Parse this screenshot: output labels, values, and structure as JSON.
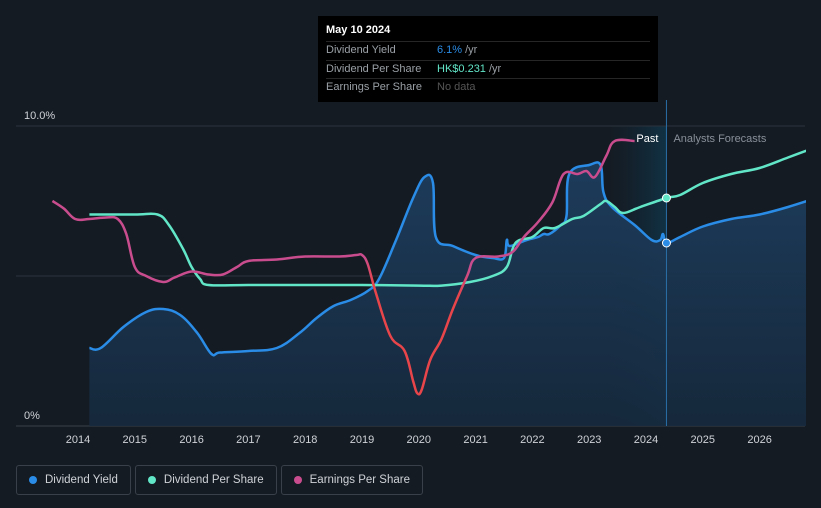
{
  "tooltip": {
    "date": "May 10 2024",
    "rows": [
      {
        "label": "Dividend Yield",
        "value": "6.1%",
        "unit": "/yr",
        "color": "#2a8ce6"
      },
      {
        "label": "Dividend Per Share",
        "value": "HK$0.231",
        "unit": "/yr",
        "color": "#62e6c8"
      },
      {
        "label": "Earnings Per Share",
        "value": "No data",
        "unit": "",
        "color": "#555555"
      }
    ]
  },
  "legend": [
    {
      "label": "Dividend Yield",
      "color": "#2a8ce6"
    },
    {
      "label": "Dividend Per Share",
      "color": "#62e6c8"
    },
    {
      "label": "Earnings Per Share",
      "color": "#c94d8e"
    }
  ],
  "chart_data": {
    "type": "line",
    "title": "",
    "xlabel": "",
    "ylabel": "",
    "ylim": [
      0,
      10
    ],
    "xlim": [
      2013.4,
      2027
    ],
    "y_tick_labels": [
      {
        "value": 10,
        "label": "10.0%"
      },
      {
        "value": 0,
        "label": "0%"
      }
    ],
    "x_ticks": [
      2014,
      2015,
      2016,
      2017,
      2018,
      2019,
      2020,
      2021,
      2022,
      2023,
      2024,
      2025,
      2026
    ],
    "past_label": "Past",
    "forecast_label": "Analysts Forecasts",
    "forecast_start": 2023.35,
    "today": 2024.36,
    "series": [
      {
        "name": "Dividend Yield",
        "color": "#2a8ce6",
        "area": true,
        "points": [
          [
            2014.2,
            2.6
          ],
          [
            2014.4,
            2.6
          ],
          [
            2014.8,
            3.3
          ],
          [
            2015.2,
            3.8
          ],
          [
            2015.5,
            3.9
          ],
          [
            2015.8,
            3.7
          ],
          [
            2016.1,
            3.1
          ],
          [
            2016.35,
            2.4
          ],
          [
            2016.5,
            2.45
          ],
          [
            2017,
            2.5
          ],
          [
            2017.5,
            2.6
          ],
          [
            2017.9,
            3.1
          ],
          [
            2018.2,
            3.6
          ],
          [
            2018.5,
            4.0
          ],
          [
            2018.8,
            4.2
          ],
          [
            2019.1,
            4.5
          ],
          [
            2019.3,
            4.9
          ],
          [
            2019.6,
            6.2
          ],
          [
            2019.9,
            7.6
          ],
          [
            2020.1,
            8.3
          ],
          [
            2020.25,
            8.1
          ],
          [
            2020.3,
            6.3
          ],
          [
            2020.6,
            6.0
          ],
          [
            2021.0,
            5.7
          ],
          [
            2021.3,
            5.6
          ],
          [
            2021.5,
            5.6
          ],
          [
            2021.55,
            6.2
          ],
          [
            2021.6,
            6.0
          ],
          [
            2021.9,
            6.2
          ],
          [
            2022.1,
            6.3
          ],
          [
            2022.2,
            6.4
          ],
          [
            2022.3,
            6.4
          ],
          [
            2022.5,
            6.7
          ],
          [
            2022.6,
            7.0
          ],
          [
            2022.65,
            8.4
          ],
          [
            2023.0,
            8.7
          ],
          [
            2023.2,
            8.7
          ],
          [
            2023.25,
            7.8
          ],
          [
            2023.4,
            7.3
          ],
          [
            2023.8,
            6.7
          ],
          [
            2024.1,
            6.2
          ],
          [
            2024.25,
            6.2
          ],
          [
            2024.3,
            6.4
          ],
          [
            2024.36,
            6.1
          ],
          [
            2024.6,
            6.3
          ],
          [
            2025.0,
            6.65
          ],
          [
            2025.5,
            6.9
          ],
          [
            2026.0,
            7.05
          ],
          [
            2026.5,
            7.3
          ],
          [
            2027,
            7.6
          ]
        ]
      },
      {
        "name": "Dividend Per Share",
        "color": "#62e6c8",
        "area": false,
        "points": [
          [
            2014.2,
            7.05
          ],
          [
            2015.0,
            7.05
          ],
          [
            2015.4,
            7.05
          ],
          [
            2015.6,
            6.7
          ],
          [
            2015.85,
            5.9
          ],
          [
            2016.0,
            5.3
          ],
          [
            2016.15,
            4.9
          ],
          [
            2016.3,
            4.7
          ],
          [
            2017,
            4.7
          ],
          [
            2018,
            4.7
          ],
          [
            2019,
            4.7
          ],
          [
            2020,
            4.68
          ],
          [
            2020.4,
            4.68
          ],
          [
            2020.9,
            4.8
          ],
          [
            2021.3,
            5.0
          ],
          [
            2021.55,
            5.3
          ],
          [
            2021.7,
            6.1
          ],
          [
            2022.0,
            6.3
          ],
          [
            2022.2,
            6.6
          ],
          [
            2022.4,
            6.6
          ],
          [
            2022.7,
            6.9
          ],
          [
            2022.9,
            7.0
          ],
          [
            2023.2,
            7.4
          ],
          [
            2023.3,
            7.5
          ],
          [
            2023.45,
            7.3
          ],
          [
            2023.6,
            7.1
          ],
          [
            2023.9,
            7.3
          ],
          [
            2024.36,
            7.6
          ],
          [
            2024.6,
            7.7
          ],
          [
            2025.0,
            8.1
          ],
          [
            2025.5,
            8.4
          ],
          [
            2026.0,
            8.6
          ],
          [
            2026.5,
            8.95
          ],
          [
            2027,
            9.3
          ]
        ]
      },
      {
        "name": "Earnings Per Share",
        "color": "#c94d8e",
        "area": false,
        "points": [
          [
            2013.55,
            7.5
          ],
          [
            2013.75,
            7.25
          ],
          [
            2013.95,
            6.9
          ],
          [
            2014.2,
            6.9
          ],
          [
            2014.5,
            6.95
          ],
          [
            2014.7,
            6.9
          ],
          [
            2014.85,
            6.4
          ],
          [
            2015.0,
            5.3
          ],
          [
            2015.2,
            5.0
          ],
          [
            2015.5,
            4.8
          ],
          [
            2015.7,
            4.95
          ],
          [
            2016.0,
            5.15
          ],
          [
            2016.3,
            5.05
          ],
          [
            2016.55,
            5.05
          ],
          [
            2016.8,
            5.3
          ],
          [
            2017.0,
            5.5
          ],
          [
            2017.5,
            5.55
          ],
          [
            2018.0,
            5.65
          ],
          [
            2018.6,
            5.65
          ],
          [
            2018.9,
            5.7
          ],
          [
            2019.0,
            5.7
          ],
          [
            2019.1,
            5.4
          ],
          [
            2019.25,
            4.4
          ],
          [
            2019.5,
            3.0
          ],
          [
            2019.75,
            2.5
          ],
          [
            2019.9,
            1.5
          ],
          [
            2019.97,
            1.1
          ],
          [
            2020.05,
            1.2
          ],
          [
            2020.2,
            2.2
          ],
          [
            2020.4,
            2.9
          ],
          [
            2020.6,
            3.9
          ],
          [
            2020.85,
            5.0
          ],
          [
            2021.0,
            5.6
          ],
          [
            2021.4,
            5.65
          ],
          [
            2021.65,
            5.8
          ],
          [
            2021.85,
            6.3
          ],
          [
            2022.1,
            6.8
          ],
          [
            2022.35,
            7.45
          ],
          [
            2022.55,
            8.4
          ],
          [
            2022.8,
            8.4
          ],
          [
            2022.95,
            8.5
          ],
          [
            2023.1,
            8.3
          ],
          [
            2023.3,
            9.0
          ],
          [
            2023.45,
            9.5
          ],
          [
            2023.8,
            9.5
          ]
        ]
      }
    ]
  }
}
